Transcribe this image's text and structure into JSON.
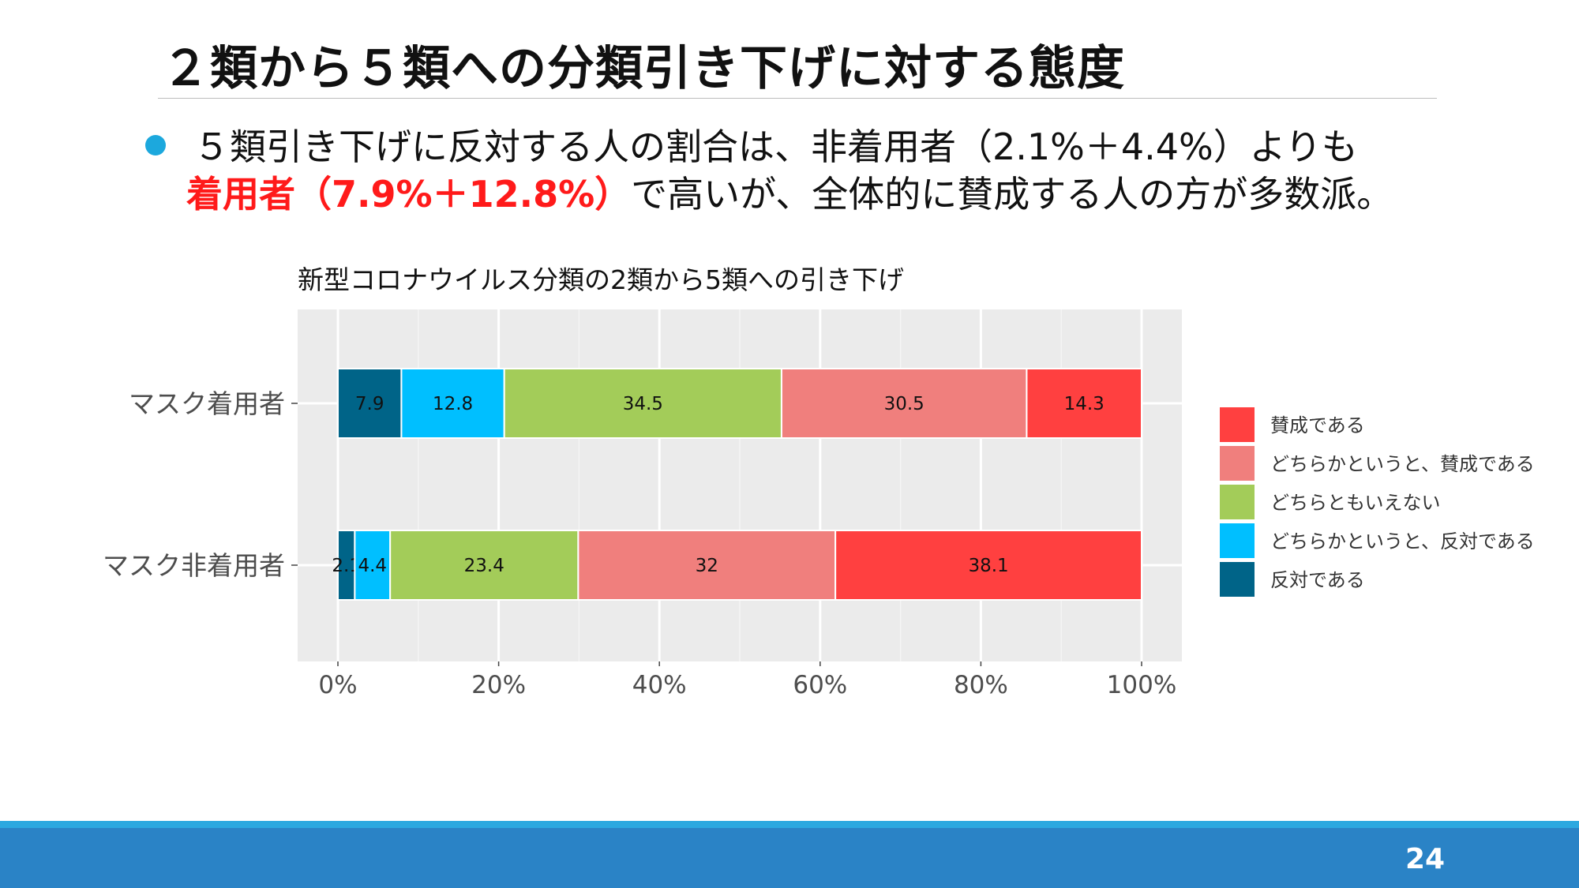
{
  "slide": {
    "title": "２類から５類への分類引き下げに対する態度",
    "bullet_line1": "５類引き下げに反対する人の割合は、非着用者（2.1%＋4.4%）よりも",
    "bullet_line2_emphasis": "着用者（7.9%＋12.8%）",
    "bullet_line2_rest": "で高いが、全体的に賛成する人の方が多数派。",
    "page_number": "24"
  },
  "colors": {
    "title_rule": "#bdbdbd",
    "bullet": "#1ca8dd",
    "emphasis": "#ff1a1a",
    "footer": "#2a83c6",
    "footer_top": "#2ba8e0",
    "plot_bg": "#ebebeb"
  },
  "chart_data": {
    "type": "bar",
    "orientation": "horizontal",
    "stacked": true,
    "title": "新型コロナウイルス分類の2類から5類への引き下げ",
    "xlabel": "",
    "ylabel": "",
    "xlim": [
      0,
      100
    ],
    "x_ticks": [
      "0%",
      "20%",
      "40%",
      "60%",
      "80%",
      "100%"
    ],
    "grid": true,
    "legend_position": "right",
    "categories": [
      "マスク着用者",
      "マスク非着用者"
    ],
    "series": [
      {
        "name": "反対である",
        "color": "#006488",
        "values": [
          7.9,
          2.1
        ],
        "labels": [
          "7.9",
          "2.1"
        ]
      },
      {
        "name": "どちらかというと、反対である",
        "color": "#00bfff",
        "values": [
          12.8,
          4.4
        ],
        "labels": [
          "12.8",
          "4.4"
        ]
      },
      {
        "name": "どちらともいえない",
        "color": "#a3cc59",
        "values": [
          34.5,
          23.4
        ],
        "labels": [
          "34.5",
          "23.4"
        ]
      },
      {
        "name": "どちらかというと、賛成である",
        "color": "#f07f7d",
        "values": [
          30.5,
          32
        ],
        "labels": [
          "30.5",
          "32"
        ]
      },
      {
        "name": "賛成である",
        "color": "#ff4040",
        "values": [
          14.3,
          38.1
        ],
        "labels": [
          "14.3",
          "38.1"
        ]
      }
    ],
    "legend_order": [
      "賛成である",
      "どちらかというと、賛成である",
      "どちらともいえない",
      "どちらかというと、反対である",
      "反対である"
    ]
  }
}
